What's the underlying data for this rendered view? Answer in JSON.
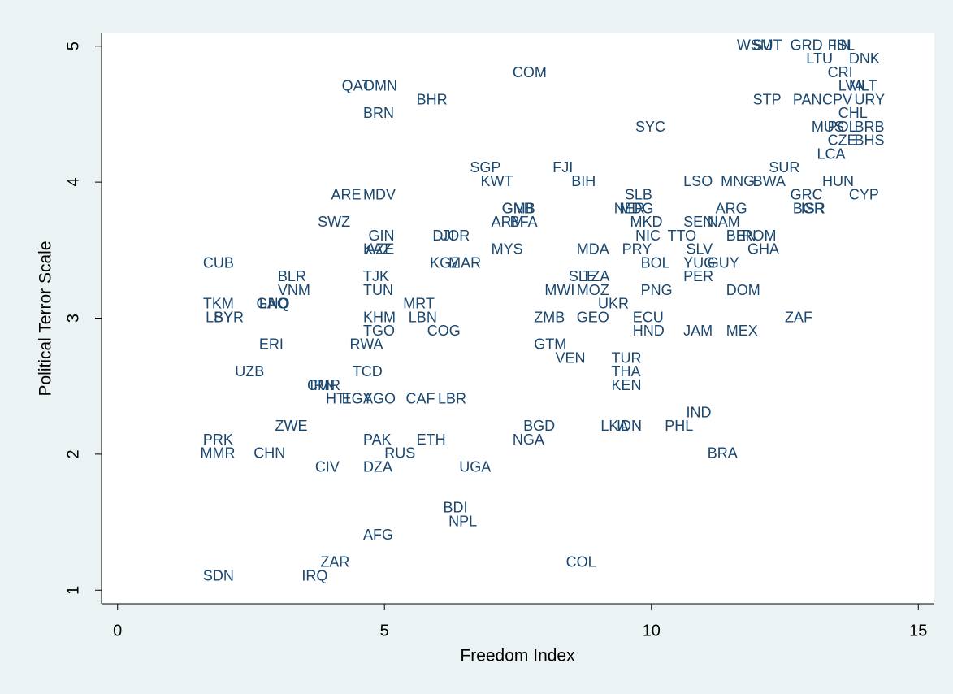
{
  "chart_data": {
    "type": "scatter",
    "xlabel": "Freedom Index",
    "ylabel": "Political Terror Scale",
    "xlim": [
      -0.3,
      15.3
    ],
    "ylim": [
      0.9,
      5.1
    ],
    "xticks": [
      0,
      5,
      10,
      15
    ],
    "yticks": [
      1,
      2,
      3,
      4,
      5
    ],
    "color": "#1a476f",
    "grid": false,
    "labels": [
      "WSM",
      "SUT",
      "GRD",
      "FIN",
      "ISL",
      "LTU",
      "DNK",
      "CRI",
      "COM",
      "QAT",
      "OMN",
      "LVA",
      "MLT",
      "BHR",
      "STP",
      "PAN",
      "CPV",
      "URY",
      "BRN",
      "CHL",
      "SYC",
      "MUS",
      "POL",
      "BRB",
      "CZE",
      "BHS",
      "LCA",
      "SUR",
      "SGP",
      "FJI",
      "KWT",
      "BIH",
      "LSO",
      "MNG",
      "BWA",
      "HUN",
      "ARE",
      "MDV",
      "SLB",
      "GRC",
      "CYP",
      "GMB",
      "GNB",
      "NER",
      "MDG",
      "ARG",
      "BGR",
      "ISR",
      "SWZ",
      "ARM",
      "BFA",
      "MKD",
      "SEN",
      "NAM",
      "GIN",
      "DJI",
      "JOR",
      "NIC",
      "TTO",
      "BEN",
      "ROM",
      "KAZ",
      "AZE",
      "MYS",
      "MDA",
      "PRY",
      "SLV",
      "GHA",
      "CUB",
      "KGZ",
      "MAR",
      "BOL",
      "YUG",
      "GUY",
      "BLR",
      "TJK",
      "SLE",
      "TZA",
      "PER",
      "VNM",
      "TUN",
      "MWI",
      "MOZ",
      "PNG",
      "DOM",
      "TKM",
      "GNQ",
      "LAO",
      "MRT",
      "UKR",
      "LBY",
      "SYR",
      "KHM",
      "LBN",
      "ZMB",
      "GEO",
      "ECU",
      "ZAF",
      "TGO",
      "COG",
      "HND",
      "JAM",
      "MEX",
      "ERI",
      "RWA",
      "GTM",
      "VEN",
      "TUR",
      "UZB",
      "TCD",
      "THA",
      "CMR",
      "IRN",
      "KEN",
      "HTI",
      "EGY",
      "AGO",
      "CAF",
      "LBR",
      "IND",
      "ZWE",
      "BGD",
      "LKA",
      "IDN",
      "PHL",
      "PRK",
      "PAK",
      "ETH",
      "NGA",
      "MMR",
      "CHN",
      "RUS",
      "BRA",
      "CIV",
      "DZA",
      "UGA",
      "BDI",
      "NPL",
      "AFG",
      "ZAR",
      "COL",
      "SDN",
      "IRQ"
    ],
    "x": [
      11.6,
      11.9,
      12.6,
      13.3,
      13.4,
      12.9,
      13.7,
      13.3,
      7.4,
      4.2,
      4.6,
      13.5,
      13.7,
      5.6,
      11.9,
      12.65,
      13.2,
      13.8,
      4.6,
      13.5,
      9.7,
      13.0,
      13.3,
      13.8,
      13.3,
      13.8,
      13.1,
      12.2,
      6.6,
      8.15,
      6.8,
      8.5,
      10.6,
      11.3,
      11.9,
      13.2,
      4.0,
      4.6,
      9.5,
      12.6,
      13.7,
      7.2,
      7.2,
      9.3,
      9.4,
      11.2,
      12.65,
      12.8,
      3.75,
      7.0,
      7.35,
      9.6,
      10.6,
      11.05,
      4.7,
      5.9,
      6.05,
      9.7,
      10.3,
      11.4,
      11.7,
      4.6,
      4.65,
      7.0,
      8.6,
      9.45,
      10.65,
      11.8,
      1.6,
      5.85,
      6.2,
      9.8,
      10.6,
      11.05,
      3.0,
      4.6,
      8.45,
      8.7,
      10.6,
      3.0,
      4.6,
      8.0,
      8.6,
      9.8,
      11.4,
      1.6,
      2.6,
      2.65,
      5.35,
      9.0,
      1.65,
      1.8,
      4.6,
      5.45,
      7.8,
      8.6,
      9.65,
      12.5,
      4.6,
      5.8,
      9.65,
      10.6,
      11.4,
      2.65,
      4.35,
      7.8,
      8.2,
      9.25,
      2.2,
      4.4,
      9.25,
      3.55,
      3.6,
      9.25,
      3.9,
      4.2,
      4.6,
      5.4,
      6.0,
      10.65,
      2.95,
      7.6,
      9.05,
      9.35,
      10.25,
      1.6,
      4.6,
      5.6,
      7.4,
      1.55,
      2.55,
      5.0,
      11.05,
      3.7,
      4.6,
      6.4,
      6.1,
      6.2,
      4.6,
      3.8,
      8.4,
      1.6,
      3.45
    ],
    "values": [
      5,
      5,
      5,
      5,
      5,
      4.9,
      4.9,
      4.8,
      4.8,
      4.7,
      4.7,
      4.7,
      4.7,
      4.6,
      4.6,
      4.6,
      4.6,
      4.6,
      4.5,
      4.5,
      4.4,
      4.4,
      4.4,
      4.4,
      4.3,
      4.3,
      4.2,
      4.1,
      4.1,
      4.1,
      4,
      4,
      4,
      4,
      4,
      4,
      3.9,
      3.9,
      3.9,
      3.9,
      3.9,
      3.8,
      3.8,
      3.8,
      3.8,
      3.8,
      3.8,
      3.8,
      3.7,
      3.7,
      3.7,
      3.7,
      3.7,
      3.7,
      3.6,
      3.6,
      3.6,
      3.6,
      3.6,
      3.6,
      3.6,
      3.5,
      3.5,
      3.5,
      3.5,
      3.5,
      3.5,
      3.5,
      3.4,
      3.4,
      3.4,
      3.4,
      3.4,
      3.4,
      3.3,
      3.3,
      3.3,
      3.3,
      3.3,
      3.2,
      3.2,
      3.2,
      3.2,
      3.2,
      3.2,
      3.1,
      3.1,
      3.1,
      3.1,
      3.1,
      3,
      3,
      3,
      3,
      3,
      3,
      3,
      3,
      2.9,
      2.9,
      2.9,
      2.9,
      2.9,
      2.8,
      2.8,
      2.8,
      2.7,
      2.7,
      2.6,
      2.6,
      2.6,
      2.5,
      2.5,
      2.5,
      2.4,
      2.4,
      2.4,
      2.4,
      2.4,
      2.3,
      2.2,
      2.2,
      2.2,
      2.2,
      2.2,
      2.1,
      2.1,
      2.1,
      2.1,
      2,
      2,
      2,
      2,
      1.9,
      1.9,
      1.9,
      1.6,
      1.5,
      1.4,
      1.2,
      1.2,
      1.1,
      1.1
    ]
  }
}
